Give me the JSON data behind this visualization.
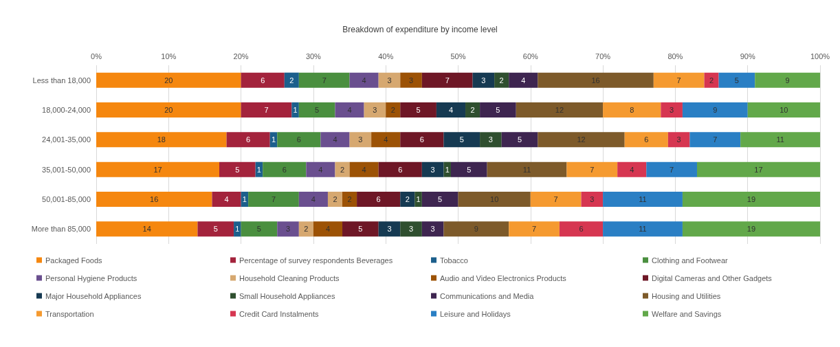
{
  "chart_data": {
    "type": "bar",
    "orientation": "horizontal",
    "stacked": true,
    "title": "Breakdown of expenditure by income level",
    "categories": [
      "Less than 18,000",
      "18,000-24,000",
      "24,001-35,000",
      "35,001-50,000",
      "50,001-85,000",
      "More than 85,000"
    ],
    "series": [
      {
        "name": "Packaged Foods",
        "color": "#f5870f",
        "values": [
          20,
          20,
          18,
          17,
          16,
          14
        ]
      },
      {
        "name": "Percentage of survey respondents Beverages",
        "color": "#a3233c",
        "values": [
          6,
          7,
          6,
          5,
          4,
          5
        ]
      },
      {
        "name": "Tobacco",
        "color": "#1c5f8c",
        "values": [
          2,
          1,
          1,
          1,
          1,
          1
        ]
      },
      {
        "name": "Clothing and Footwear",
        "color": "#4a8f3f",
        "values": [
          7,
          5,
          6,
          6,
          7,
          5
        ]
      },
      {
        "name": "Personal Hygiene Products",
        "color": "#6a4f8f",
        "values": [
          4,
          4,
          4,
          4,
          4,
          3
        ]
      },
      {
        "name": "Household Cleaning Products",
        "color": "#d6a870",
        "values": [
          3,
          3,
          3,
          2,
          2,
          2
        ]
      },
      {
        "name": "Audio and Video Electronics Products",
        "color": "#9c5205",
        "values": [
          3,
          2,
          4,
          4,
          2,
          4
        ]
      },
      {
        "name": "Digital Cameras and Other Gadgets",
        "color": "#6e1726",
        "values": [
          7,
          5,
          6,
          6,
          6,
          5
        ]
      },
      {
        "name": "Major Household Appliances",
        "color": "#163a52",
        "values": [
          3,
          4,
          5,
          3,
          2,
          3
        ]
      },
      {
        "name": "Small Household Appliances",
        "color": "#2f4f2f",
        "values": [
          2,
          2,
          3,
          1,
          1,
          3
        ]
      },
      {
        "name": "Communications and Media",
        "color": "#3e2550",
        "values": [
          4,
          5,
          5,
          5,
          5,
          3
        ]
      },
      {
        "name": "Housing and Utilities",
        "color": "#7d5a2a",
        "values": [
          16,
          12,
          12,
          11,
          10,
          9
        ]
      },
      {
        "name": "Transportation",
        "color": "#f59a30",
        "values": [
          7,
          8,
          6,
          7,
          7,
          7
        ]
      },
      {
        "name": "Credit Card Instalments",
        "color": "#d63651",
        "values": [
          2,
          3,
          3,
          4,
          3,
          6
        ]
      },
      {
        "name": "Leisure and Holidays",
        "color": "#2a7fc4",
        "values": [
          5,
          9,
          7,
          7,
          11,
          11
        ]
      },
      {
        "name": "Welfare and Savings",
        "color": "#62a84a",
        "values": [
          9,
          10,
          11,
          17,
          19,
          19
        ]
      }
    ],
    "xlim": [
      0,
      100
    ],
    "xticks": [
      {
        "value": 0,
        "label": "0%"
      },
      {
        "value": 10,
        "label": "10%"
      },
      {
        "value": 20,
        "label": "20%"
      },
      {
        "value": 30,
        "label": "30%"
      },
      {
        "value": 40,
        "label": "40%"
      },
      {
        "value": 50,
        "label": "50%"
      },
      {
        "value": 60,
        "label": "60%"
      },
      {
        "value": 70,
        "label": "70%"
      },
      {
        "value": 80,
        "label": "80%"
      },
      {
        "value": 90,
        "label": "90%"
      },
      {
        "value": 100,
        "label": "100%"
      }
    ],
    "grid": "x",
    "data_labels": true,
    "legend": "bottom"
  }
}
